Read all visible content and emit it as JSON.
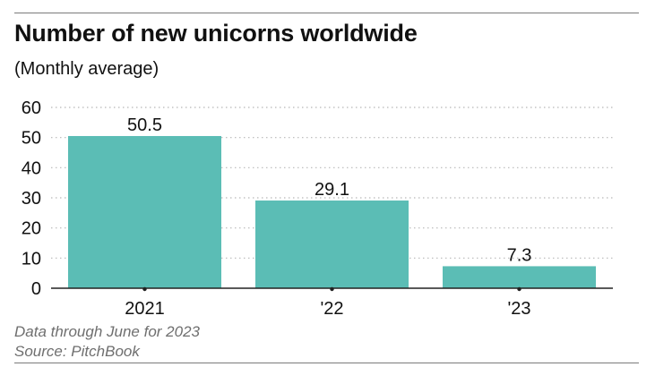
{
  "header": {
    "title": "Number of new unicorns worldwide",
    "subtitle": "(Monthly average)"
  },
  "footer": {
    "note": "Data through June for 2023",
    "source": "Source: PitchBook"
  },
  "colors": {
    "bar": "#5bbdb5",
    "text": "#111111",
    "grid": "#b8b8b8",
    "axis": "#222222",
    "footnote": "#6f6f6f"
  },
  "chart_data": {
    "type": "bar",
    "title": "Number of new unicorns worldwide",
    "subtitle": "(Monthly average)",
    "categories": [
      "2021",
      "'22",
      "'23"
    ],
    "values": [
      50.5,
      29.1,
      7.3
    ],
    "value_labels": [
      "50.5",
      "29.1",
      "7.3"
    ],
    "xlabel": "",
    "ylabel": "",
    "ylim": [
      0,
      60
    ],
    "yticks": [
      0,
      10,
      20,
      30,
      40,
      50,
      60
    ],
    "grid": true,
    "legend": "none"
  }
}
